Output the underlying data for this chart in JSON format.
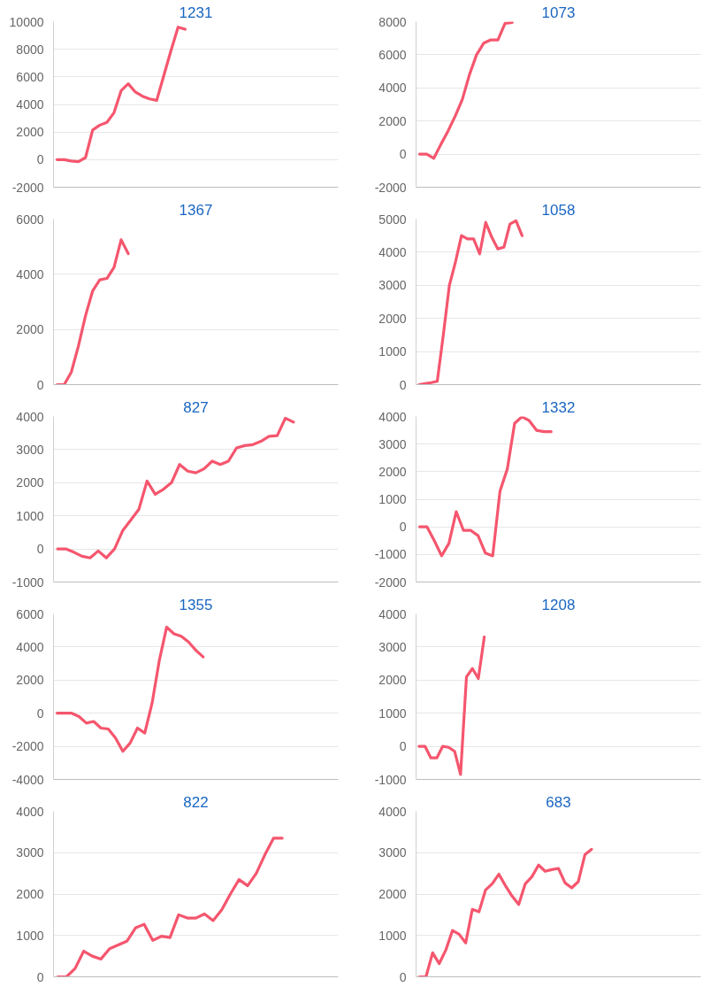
{
  "chart_data": [
    {
      "type": "line",
      "title": "1231",
      "color": "#f5566e",
      "grid": "y",
      "tick_labels": "y",
      "ylim": [
        -2000,
        10000
      ],
      "yticks": [
        -2000,
        0,
        2000,
        4000,
        6000,
        8000,
        10000
      ],
      "categories": [
        null,
        null,
        null,
        null,
        null,
        null,
        null,
        null,
        null,
        null,
        null,
        null,
        null,
        null,
        null,
        null,
        null,
        null,
        null,
        null,
        null,
        null,
        null,
        null,
        null,
        null,
        null,
        null,
        null,
        null,
        null,
        null,
        null,
        null,
        null,
        null,
        null,
        null,
        null,
        null
      ],
      "values": [
        0,
        0,
        -100,
        -150,
        150,
        2150,
        2500,
        2700,
        3400,
        5000,
        5500,
        4900,
        4600,
        4400,
        4300,
        6100,
        7900,
        9600,
        9450,
        null,
        null,
        null,
        null,
        null,
        null,
        null,
        null,
        null,
        null,
        null,
        null,
        null,
        null,
        null,
        null,
        null,
        null,
        null,
        null,
        null
      ]
    },
    {
      "type": "line",
      "title": "1073",
      "color": "#f5566e",
      "grid": "y",
      "tick_labels": "y",
      "ylim": [
        -2000,
        8000
      ],
      "yticks": [
        -2000,
        0,
        2000,
        4000,
        6000,
        8000
      ],
      "categories": [
        null,
        null,
        null,
        null,
        null,
        null,
        null,
        null,
        null,
        null,
        null,
        null,
        null,
        null,
        null,
        null,
        null,
        null,
        null,
        null,
        null,
        null,
        null,
        null,
        null,
        null,
        null,
        null,
        null,
        null,
        null,
        null,
        null,
        null,
        null,
        null,
        null,
        null,
        null,
        null
      ],
      "values": [
        0,
        0,
        -250,
        600,
        1400,
        2300,
        3300,
        4800,
        6000,
        6700,
        6900,
        6900,
        7900,
        7950,
        null,
        null,
        null,
        null,
        null,
        null,
        null,
        null,
        null,
        null,
        null,
        null,
        null,
        null,
        null,
        null,
        null,
        null,
        null,
        null,
        null,
        null,
        null,
        null,
        null,
        null
      ]
    },
    {
      "type": "line",
      "title": "1367",
      "color": "#f5566e",
      "grid": "y",
      "tick_labels": "y",
      "ylim": [
        0,
        6000
      ],
      "yticks": [
        0,
        2000,
        4000,
        6000
      ],
      "categories": [
        null,
        null,
        null,
        null,
        null,
        null,
        null,
        null,
        null,
        null,
        null,
        null,
        null,
        null,
        null,
        null,
        null,
        null,
        null,
        null,
        null,
        null,
        null,
        null,
        null,
        null,
        null,
        null,
        null,
        null,
        null,
        null,
        null,
        null,
        null,
        null,
        null,
        null,
        null,
        null
      ],
      "values": [
        0,
        0,
        450,
        1400,
        2500,
        3400,
        3800,
        3850,
        4250,
        5250,
        4750,
        null,
        null,
        null,
        null,
        null,
        null,
        null,
        null,
        null,
        null,
        null,
        null,
        null,
        null,
        null,
        null,
        null,
        null,
        null,
        null,
        null,
        null,
        null,
        null,
        null,
        null,
        null,
        null,
        null
      ]
    },
    {
      "type": "line",
      "title": "1058",
      "color": "#f5566e",
      "grid": "y",
      "tick_labels": "y",
      "ylim": [
        0,
        5000
      ],
      "yticks": [
        0,
        1000,
        2000,
        3000,
        4000,
        5000
      ],
      "categories": [
        null,
        null,
        null,
        null,
        null,
        null,
        null,
        null,
        null,
        null,
        null,
        null,
        null,
        null,
        null,
        null,
        null,
        null,
        null,
        null,
        null,
        null,
        null,
        null,
        null,
        null,
        null,
        null,
        null,
        null,
        null,
        null,
        null,
        null,
        null,
        null,
        null,
        null,
        null,
        null,
        null,
        null,
        null,
        null,
        null,
        null,
        null
      ],
      "values": [
        0,
        30,
        60,
        100,
        1500,
        3000,
        3700,
        4500,
        4400,
        4400,
        3950,
        4900,
        4450,
        4100,
        4150,
        4850,
        4950,
        4500,
        null,
        null,
        null,
        null,
        null,
        null,
        null,
        null,
        null,
        null,
        null,
        null,
        null,
        null,
        null,
        null,
        null,
        null,
        null,
        null,
        null,
        null,
        null,
        null,
        null,
        null,
        null,
        null,
        null
      ]
    },
    {
      "type": "line",
      "title": "827",
      "color": "#f5566e",
      "grid": "y",
      "tick_labels": "y",
      "ylim": [
        -1000,
        4000
      ],
      "yticks": [
        -1000,
        0,
        1000,
        2000,
        3000,
        4000
      ],
      "categories": [
        null,
        null,
        null,
        null,
        null,
        null,
        null,
        null,
        null,
        null,
        null,
        null,
        null,
        null,
        null,
        null,
        null,
        null,
        null,
        null,
        null,
        null,
        null,
        null,
        null,
        null,
        null,
        null,
        null,
        null,
        null,
        null,
        null,
        null,
        null
      ],
      "values": [
        0,
        0,
        -100,
        -220,
        -270,
        -60,
        -270,
        0,
        550,
        870,
        1200,
        2050,
        1650,
        1800,
        2000,
        2550,
        2350,
        2300,
        2420,
        2650,
        2550,
        2650,
        3050,
        3120,
        3150,
        3250,
        3400,
        3420,
        3950,
        3830,
        null,
        null,
        null,
        null,
        null
      ]
    },
    {
      "type": "line",
      "title": "1332",
      "color": "#f5566e",
      "grid": "y",
      "tick_labels": "y",
      "ylim": [
        -2000,
        4000
      ],
      "yticks": [
        -2000,
        -1000,
        0,
        1000,
        2000,
        3000,
        4000
      ],
      "categories": [
        null,
        null,
        null,
        null,
        null,
        null,
        null,
        null,
        null,
        null,
        null,
        null,
        null,
        null,
        null,
        null,
        null,
        null,
        null,
        null,
        null,
        null,
        null,
        null,
        null,
        null,
        null,
        null,
        null,
        null,
        null,
        null,
        null,
        null,
        null,
        null,
        null,
        null,
        null
      ],
      "values": [
        0,
        0,
        -500,
        -1050,
        -600,
        550,
        -130,
        -130,
        -320,
        -950,
        -1050,
        1300,
        2100,
        3750,
        3990,
        3850,
        3500,
        3450,
        3450,
        null,
        null,
        null,
        null,
        null,
        null,
        null,
        null,
        null,
        null,
        null,
        null,
        null,
        null,
        null,
        null,
        null,
        null,
        null,
        null
      ]
    },
    {
      "type": "line",
      "title": "1355",
      "color": "#f5566e",
      "grid": "y",
      "tick_labels": "y",
      "ylim": [
        -4000,
        6000
      ],
      "yticks": [
        -4000,
        -2000,
        0,
        2000,
        4000,
        6000
      ],
      "categories": [
        null,
        null,
        null,
        null,
        null,
        null,
        null,
        null,
        null,
        null,
        null,
        null,
        null,
        null,
        null,
        null,
        null,
        null,
        null,
        null,
        null,
        null,
        null,
        null,
        null,
        null,
        null,
        null,
        null,
        null,
        null,
        null,
        null,
        null,
        null,
        null,
        null,
        null,
        null
      ],
      "values": [
        0,
        0,
        0,
        -200,
        -600,
        -500,
        -900,
        -950,
        -1500,
        -2300,
        -1800,
        -900,
        -1200,
        600,
        3200,
        5200,
        4800,
        4650,
        4300,
        3800,
        3400,
        null,
        null,
        null,
        null,
        null,
        null,
        null,
        null,
        null,
        null,
        null,
        null,
        null,
        null,
        null,
        null,
        null,
        null
      ]
    },
    {
      "type": "line",
      "title": "1208",
      "color": "#f5566e",
      "grid": "y",
      "tick_labels": "y",
      "ylim": [
        -1000,
        4000
      ],
      "yticks": [
        -1000,
        0,
        1000,
        2000,
        3000,
        4000
      ],
      "categories": [
        null,
        null,
        null,
        null,
        null,
        null,
        null,
        null,
        null,
        null,
        null,
        null,
        null,
        null,
        null,
        null,
        null,
        null,
        null,
        null,
        null,
        null,
        null,
        null,
        null,
        null,
        null,
        null,
        null,
        null,
        null,
        null,
        null,
        null,
        null,
        null,
        null,
        null,
        null,
        null,
        null,
        null,
        null,
        null,
        null,
        null,
        null,
        null
      ],
      "values": [
        0,
        0,
        -350,
        -350,
        0,
        -30,
        -150,
        -850,
        2100,
        2350,
        2050,
        3300,
        null,
        null,
        null,
        null,
        null,
        null,
        null,
        null,
        null,
        null,
        null,
        null,
        null,
        null,
        null,
        null,
        null,
        null,
        null,
        null,
        null,
        null,
        null,
        null,
        null,
        null,
        null,
        null,
        null,
        null,
        null,
        null,
        null,
        null,
        null,
        null
      ]
    },
    {
      "type": "line",
      "title": "822",
      "color": "#f5566e",
      "grid": "y",
      "tick_labels": "y",
      "ylim": [
        0,
        4000
      ],
      "yticks": [
        0,
        1000,
        2000,
        3000,
        4000
      ],
      "categories": [
        null,
        null,
        null,
        null,
        null,
        null,
        null,
        null,
        null,
        null,
        null,
        null,
        null,
        null,
        null,
        null,
        null,
        null,
        null,
        null,
        null,
        null,
        null,
        null,
        null,
        null,
        null,
        null,
        null,
        null,
        null,
        null,
        null
      ],
      "values": [
        0,
        0,
        200,
        620,
        500,
        430,
        680,
        770,
        860,
        1180,
        1270,
        880,
        980,
        950,
        1500,
        1420,
        1420,
        1520,
        1360,
        1620,
        2000,
        2350,
        2200,
        2500,
        2950,
        3350,
        3350,
        null,
        null,
        null,
        null,
        null,
        null
      ]
    },
    {
      "type": "line",
      "title": "683",
      "color": "#f5566e",
      "grid": "y",
      "tick_labels": "y",
      "ylim": [
        0,
        4000
      ],
      "yticks": [
        0,
        1000,
        2000,
        3000,
        4000
      ],
      "categories": [
        null,
        null,
        null,
        null,
        null,
        null,
        null,
        null,
        null,
        null,
        null,
        null,
        null,
        null,
        null,
        null,
        null,
        null,
        null,
        null,
        null,
        null,
        null,
        null,
        null,
        null,
        null,
        null,
        null,
        null,
        null,
        null,
        null,
        null,
        null,
        null,
        null,
        null,
        null,
        null,
        null,
        null,
        null
      ],
      "values": [
        0,
        0,
        580,
        320,
        650,
        1120,
        1030,
        820,
        1630,
        1570,
        2100,
        2250,
        2480,
        2200,
        1950,
        1750,
        2250,
        2420,
        2700,
        2550,
        2590,
        2620,
        2270,
        2150,
        2300,
        2950,
        3080,
        null,
        null,
        null,
        null,
        null,
        null,
        null,
        null,
        null,
        null,
        null,
        null,
        null,
        null,
        null,
        null
      ]
    }
  ]
}
